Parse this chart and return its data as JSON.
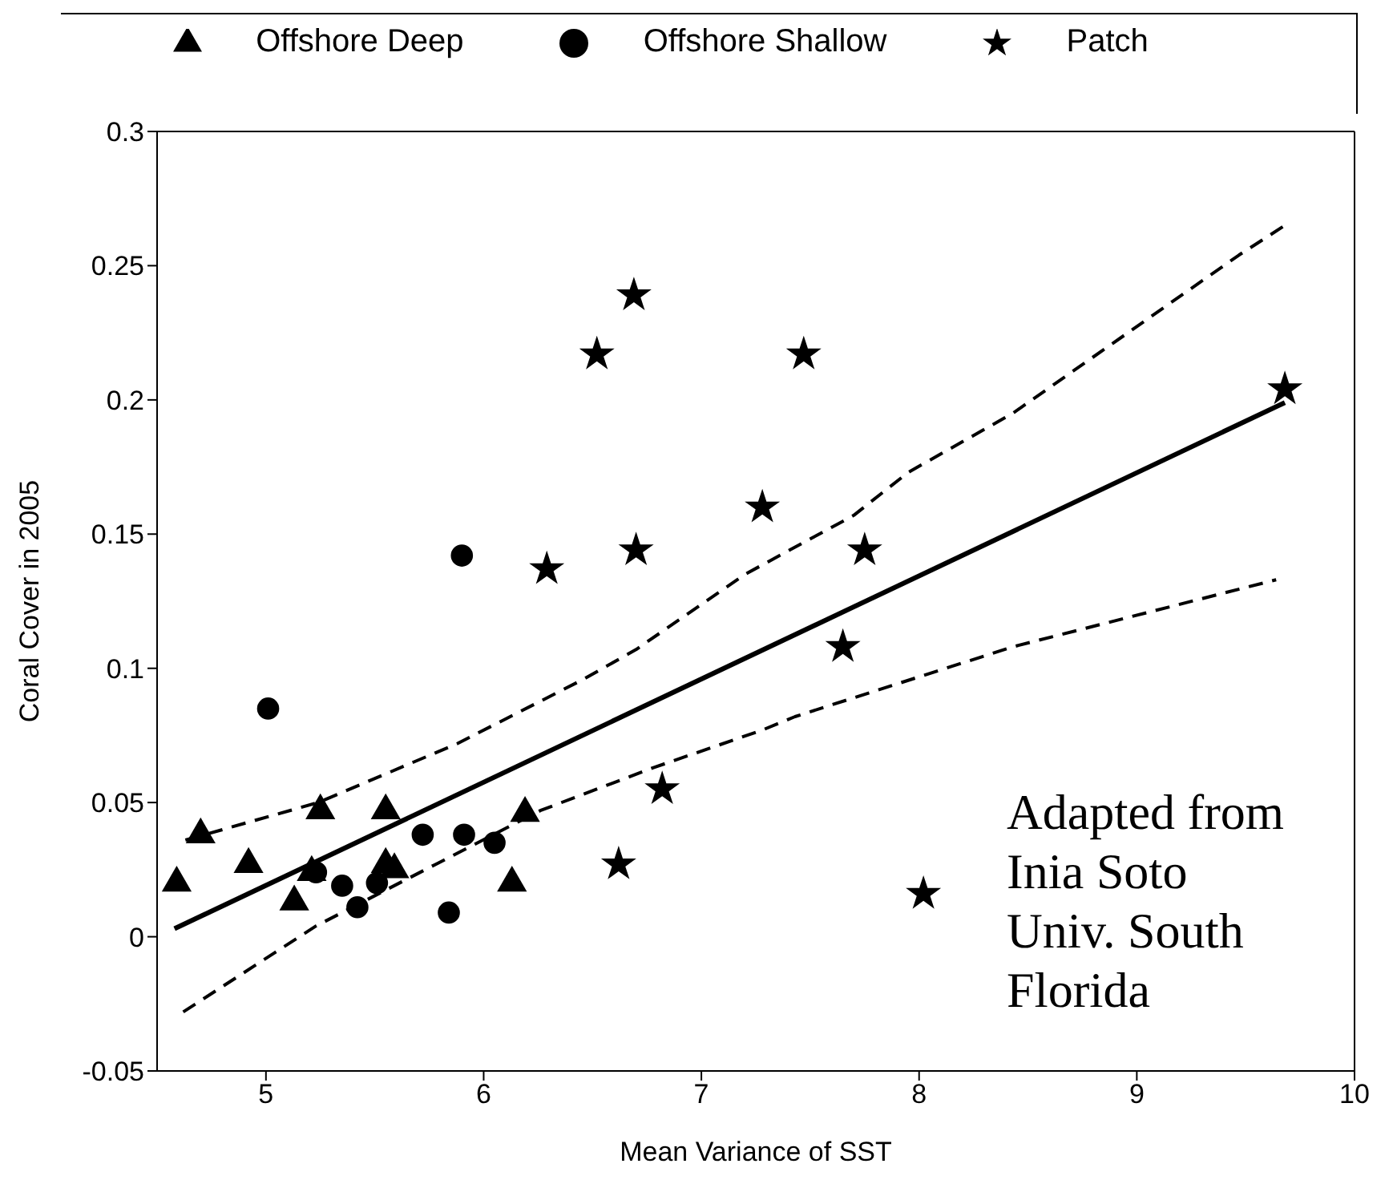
{
  "chart_data": {
    "type": "scatter",
    "xlabel": "Mean Variance of SST",
    "ylabel": "Coral Cover in 2005",
    "xlim": [
      4.5,
      10
    ],
    "xticks": [
      5,
      6,
      7,
      8,
      9,
      10
    ],
    "ylim": [
      -0.05,
      0.3
    ],
    "yticks": [
      -0.05,
      0,
      0.05,
      0.1,
      0.15,
      0.2,
      0.25,
      0.3
    ],
    "grid": false,
    "legend": "top",
    "annotations": [
      "Adapted from\nInia Soto\nUniv. South\nFlorida"
    ],
    "series": [
      {
        "name": "Offshore Deep",
        "marker": "triangle",
        "color": "#000000",
        "x": [
          4.59,
          4.7,
          4.92,
          5.13,
          5.21,
          5.25,
          5.55,
          5.55,
          5.59,
          6.13,
          6.19
        ],
        "values": [
          0.02,
          0.038,
          0.027,
          0.013,
          0.024,
          0.047,
          0.047,
          0.027,
          0.025,
          0.02,
          0.046
        ]
      },
      {
        "name": "Offshore Shallow",
        "marker": "circle",
        "color": "#000000",
        "x": [
          5.01,
          5.23,
          5.35,
          5.42,
          5.51,
          5.72,
          5.84,
          5.9,
          5.91,
          6.05
        ],
        "values": [
          0.085,
          0.024,
          0.019,
          0.011,
          0.02,
          0.038,
          0.009,
          0.142,
          0.038,
          0.035
        ]
      },
      {
        "name": "Patch",
        "marker": "star",
        "color": "#000000",
        "x": [
          6.29,
          6.52,
          6.62,
          6.69,
          6.7,
          6.82,
          7.28,
          7.47,
          7.65,
          7.75,
          8.02,
          9.68
        ],
        "values": [
          0.137,
          0.217,
          0.027,
          0.239,
          0.144,
          0.055,
          0.16,
          0.217,
          0.108,
          0.144,
          0.016,
          0.204
        ]
      },
      {
        "type": "line",
        "line_style": "solid",
        "color": "#000000",
        "x": [
          4.58,
          9.68
        ],
        "values": [
          0.003,
          0.199
        ]
      },
      {
        "type": "line",
        "line_style": "dashed",
        "color": "#000000",
        "x": [
          4.63,
          5.24,
          5.88,
          6.46,
          6.7,
          7.2,
          7.7,
          7.95,
          8.43,
          9.47,
          9.68
        ],
        "values": [
          0.036,
          0.05,
          0.072,
          0.096,
          0.107,
          0.135,
          0.157,
          0.173,
          0.195,
          0.254,
          0.265
        ]
      },
      {
        "type": "line",
        "line_style": "dashed",
        "color": "#000000",
        "x": [
          4.62,
          5.23,
          5.78,
          6.26,
          6.78,
          7.28,
          7.43,
          8.43,
          9.64
        ],
        "values": [
          -0.028,
          0.004,
          0.027,
          0.047,
          0.063,
          0.077,
          0.082,
          0.108,
          0.133
        ]
      }
    ]
  }
}
